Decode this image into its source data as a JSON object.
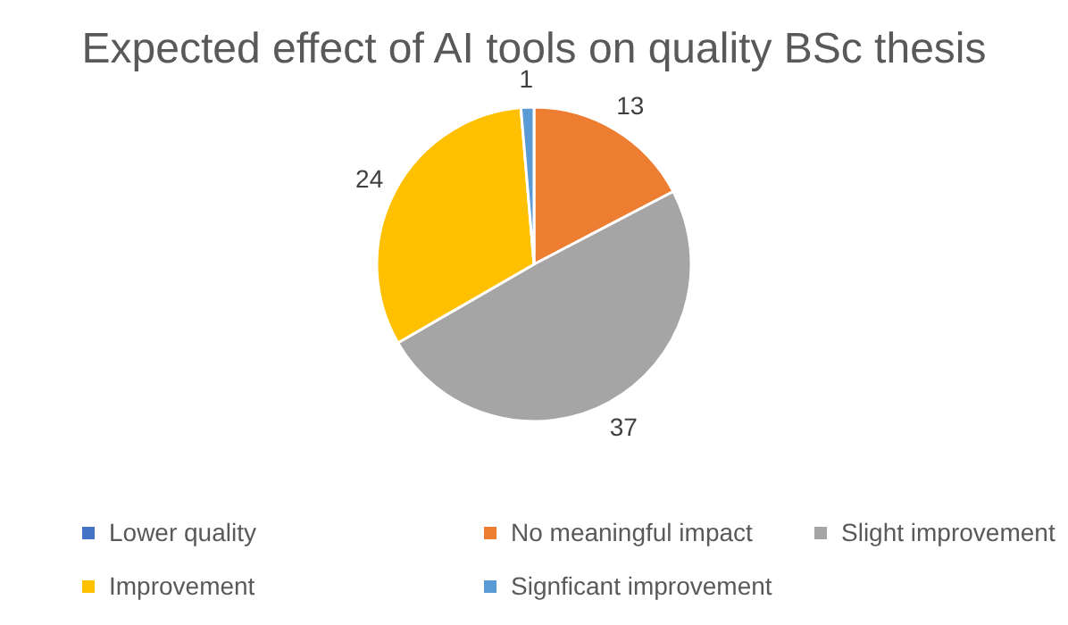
{
  "chart_data": {
    "type": "pie",
    "title": "Expected effect of AI tools on quality BSc thesis",
    "categories": [
      "Lower quality",
      "No meaningful impact",
      "Slight improvement",
      "Improvement",
      "Signficant improvement"
    ],
    "values": [
      0,
      13,
      37,
      24,
      1
    ],
    "colors": [
      "#4472c4",
      "#ed7d31",
      "#a5a5a5",
      "#ffc000",
      "#5b9bd5"
    ],
    "value_labels": [
      null,
      "13",
      "37",
      "24",
      "1"
    ],
    "legend": "bottom"
  }
}
